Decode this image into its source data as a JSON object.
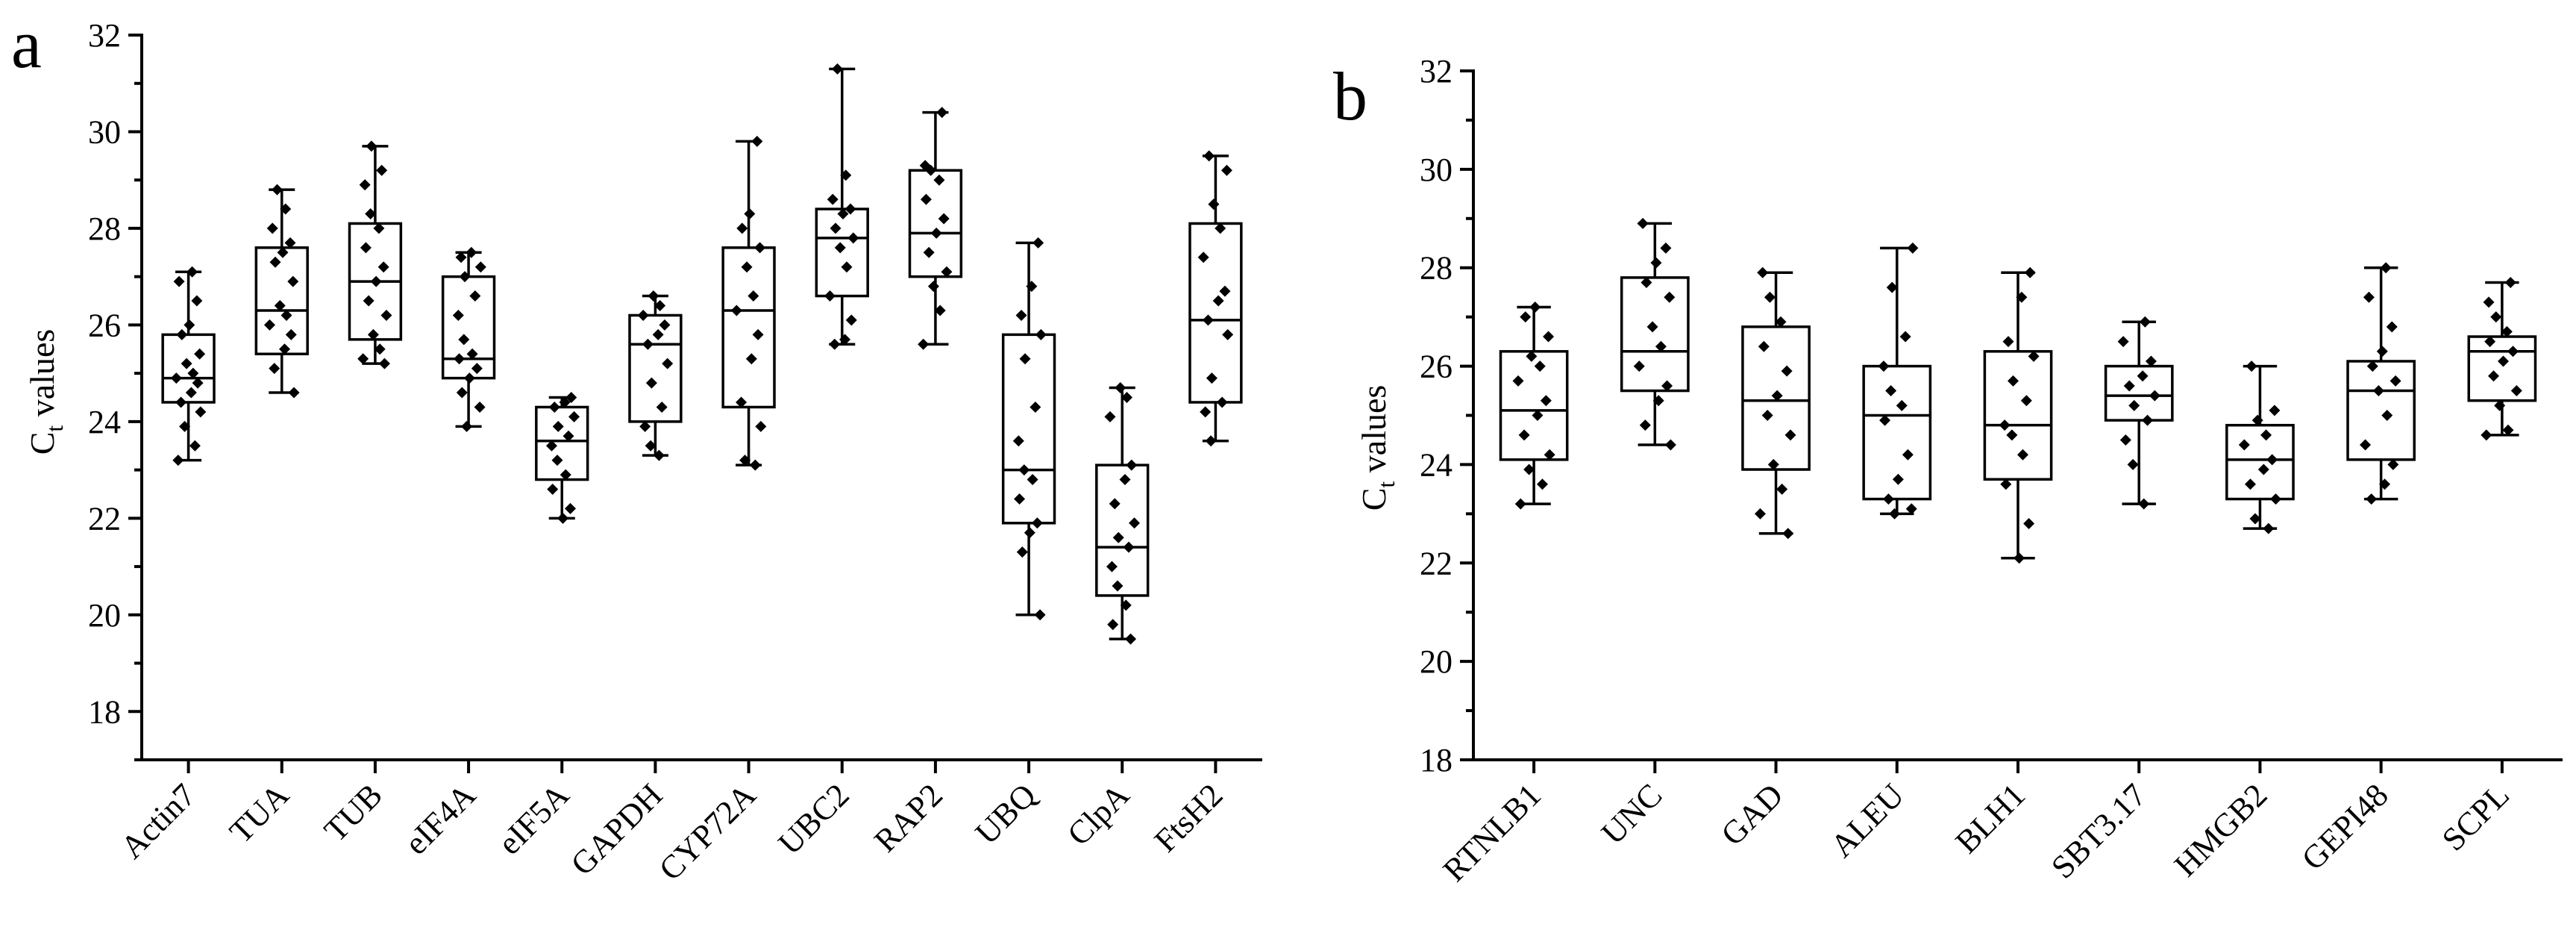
{
  "chart_data": [
    {
      "type": "box",
      "panel_label": "a",
      "ylabel_main": "C",
      "ylabel_sub": "t",
      "ylabel_rest": " values",
      "ylim": [
        17,
        32
      ],
      "yticks": [
        18,
        20,
        22,
        24,
        26,
        28,
        30,
        32
      ],
      "categories": [
        "Actin7",
        "TUA",
        "TUB",
        "eIF4A",
        "eIF5A",
        "GAPDH",
        "CYP72A",
        "UBC2",
        "RAP2",
        "UBQ",
        "ClpA",
        "FtsH2"
      ],
      "boxes": [
        {
          "min": 23.2,
          "q1": 24.4,
          "median": 24.9,
          "q3": 25.8,
          "max": 27.1,
          "points": [
            23.2,
            23.5,
            23.9,
            24.2,
            24.4,
            24.6,
            24.8,
            24.9,
            25.0,
            25.2,
            25.4,
            25.8,
            26.0,
            26.5,
            26.9,
            27.1
          ]
        },
        {
          "min": 24.6,
          "q1": 25.4,
          "median": 26.3,
          "q3": 27.6,
          "max": 28.8,
          "points": [
            24.6,
            25.1,
            25.5,
            25.8,
            26.0,
            26.2,
            26.4,
            26.9,
            27.3,
            27.5,
            27.7,
            28.0,
            28.4,
            28.8
          ]
        },
        {
          "min": 25.2,
          "q1": 25.7,
          "median": 26.9,
          "q3": 28.1,
          "max": 29.7,
          "points": [
            25.2,
            25.3,
            25.5,
            25.8,
            26.2,
            26.5,
            26.9,
            27.2,
            27.6,
            28.0,
            28.3,
            28.9,
            29.2,
            29.7
          ]
        },
        {
          "min": 23.9,
          "q1": 24.9,
          "median": 25.3,
          "q3": 27.0,
          "max": 27.5,
          "points": [
            23.9,
            24.3,
            24.6,
            24.9,
            25.1,
            25.3,
            25.4,
            25.7,
            26.2,
            26.6,
            27.0,
            27.2,
            27.4,
            27.5
          ]
        },
        {
          "min": 22.0,
          "q1": 22.8,
          "median": 23.6,
          "q3": 24.3,
          "max": 24.5,
          "points": [
            22.0,
            22.2,
            22.6,
            22.9,
            23.2,
            23.5,
            23.7,
            23.9,
            24.1,
            24.3,
            24.4,
            24.5
          ]
        },
        {
          "min": 23.3,
          "q1": 24.0,
          "median": 25.6,
          "q3": 26.2,
          "max": 26.6,
          "points": [
            23.3,
            23.5,
            23.9,
            24.3,
            24.8,
            25.2,
            25.6,
            25.8,
            26.0,
            26.2,
            26.4,
            26.6
          ]
        },
        {
          "min": 23.1,
          "q1": 24.3,
          "median": 26.3,
          "q3": 27.6,
          "max": 29.8,
          "points": [
            23.1,
            23.2,
            23.9,
            24.4,
            25.3,
            25.8,
            26.3,
            26.6,
            27.2,
            27.6,
            28.0,
            28.3,
            29.8
          ]
        },
        {
          "min": 25.6,
          "q1": 26.6,
          "median": 27.8,
          "q3": 28.4,
          "max": 31.3,
          "points": [
            25.6,
            25.7,
            26.1,
            26.6,
            27.2,
            27.6,
            27.8,
            28.0,
            28.3,
            28.4,
            28.6,
            29.1,
            31.3
          ]
        },
        {
          "min": 25.6,
          "q1": 27.0,
          "median": 27.9,
          "q3": 29.2,
          "max": 30.4,
          "points": [
            25.6,
            26.3,
            26.8,
            27.1,
            27.5,
            27.9,
            28.2,
            28.6,
            29.0,
            29.2,
            29.3,
            30.4
          ]
        },
        {
          "min": 20.0,
          "q1": 21.9,
          "median": 23.0,
          "q3": 25.8,
          "max": 27.7,
          "points": [
            20.0,
            21.3,
            21.7,
            21.9,
            22.4,
            22.8,
            23.0,
            23.6,
            24.3,
            25.3,
            25.8,
            26.2,
            26.8,
            27.7
          ]
        },
        {
          "min": 19.5,
          "q1": 20.4,
          "median": 21.4,
          "q3": 23.1,
          "max": 24.7,
          "points": [
            19.5,
            19.8,
            20.2,
            20.6,
            21.0,
            21.4,
            21.6,
            21.9,
            22.3,
            22.8,
            23.1,
            24.1,
            24.5,
            24.7
          ]
        },
        {
          "min": 23.6,
          "q1": 24.4,
          "median": 26.1,
          "q3": 28.1,
          "max": 29.5,
          "points": [
            23.6,
            24.2,
            24.4,
            24.9,
            25.8,
            26.1,
            26.5,
            26.7,
            27.4,
            28.0,
            28.5,
            29.2,
            29.5
          ]
        }
      ]
    },
    {
      "type": "box",
      "panel_label": "b",
      "ylabel_main": "C",
      "ylabel_sub": "t",
      "ylabel_rest": " values",
      "ylim": [
        18,
        32
      ],
      "yticks": [
        18,
        20,
        22,
        24,
        26,
        28,
        30,
        32
      ],
      "categories": [
        "RTNLB1",
        "UNC",
        "GAD",
        "ALEU",
        "BLH1",
        "SBT3.17",
        "HMGB2",
        "GEPI48",
        "SCPL"
      ],
      "boxes": [
        {
          "min": 23.2,
          "q1": 24.1,
          "median": 25.1,
          "q3": 26.3,
          "max": 27.2,
          "points": [
            23.2,
            23.6,
            23.9,
            24.2,
            24.6,
            25.0,
            25.3,
            25.7,
            26.0,
            26.2,
            26.6,
            27.0,
            27.2
          ]
        },
        {
          "min": 24.4,
          "q1": 25.5,
          "median": 26.3,
          "q3": 27.8,
          "max": 28.9,
          "points": [
            24.4,
            24.8,
            25.3,
            25.6,
            26.0,
            26.4,
            26.8,
            27.4,
            27.7,
            28.1,
            28.4,
            28.9
          ]
        },
        {
          "min": 22.6,
          "q1": 23.9,
          "median": 25.3,
          "q3": 26.8,
          "max": 27.9,
          "points": [
            22.6,
            23.0,
            23.5,
            24.0,
            24.6,
            25.0,
            25.4,
            25.9,
            26.4,
            26.9,
            27.4,
            27.9
          ]
        },
        {
          "min": 23.0,
          "q1": 23.3,
          "median": 25.0,
          "q3": 26.0,
          "max": 28.4,
          "points": [
            23.0,
            23.1,
            23.3,
            23.7,
            24.2,
            24.9,
            25.2,
            25.5,
            26.0,
            26.6,
            27.6,
            28.4
          ]
        },
        {
          "min": 22.1,
          "q1": 23.7,
          "median": 24.8,
          "q3": 26.3,
          "max": 27.9,
          "points": [
            22.1,
            22.8,
            23.6,
            24.2,
            24.6,
            24.8,
            25.3,
            25.7,
            26.2,
            26.5,
            27.4,
            27.9
          ]
        },
        {
          "min": 23.2,
          "q1": 24.9,
          "median": 25.4,
          "q3": 26.0,
          "max": 26.9,
          "points": [
            23.2,
            24.0,
            24.5,
            24.9,
            25.2,
            25.4,
            25.6,
            25.8,
            26.1,
            26.5,
            26.9
          ]
        },
        {
          "min": 22.7,
          "q1": 23.3,
          "median": 24.1,
          "q3": 24.8,
          "max": 26.0,
          "points": [
            22.7,
            22.9,
            23.3,
            23.6,
            23.9,
            24.1,
            24.4,
            24.6,
            24.9,
            25.1,
            26.0
          ]
        },
        {
          "min": 23.3,
          "q1": 24.1,
          "median": 25.5,
          "q3": 26.1,
          "max": 28.0,
          "points": [
            23.3,
            23.6,
            24.0,
            24.4,
            25.0,
            25.5,
            25.7,
            26.0,
            26.3,
            26.8,
            27.4,
            28.0
          ]
        },
        {
          "min": 24.6,
          "q1": 25.3,
          "median": 26.3,
          "q3": 26.6,
          "max": 27.7,
          "points": [
            24.6,
            24.7,
            25.2,
            25.5,
            25.8,
            26.1,
            26.3,
            26.5,
            26.7,
            27.0,
            27.3,
            27.7
          ]
        }
      ]
    }
  ]
}
